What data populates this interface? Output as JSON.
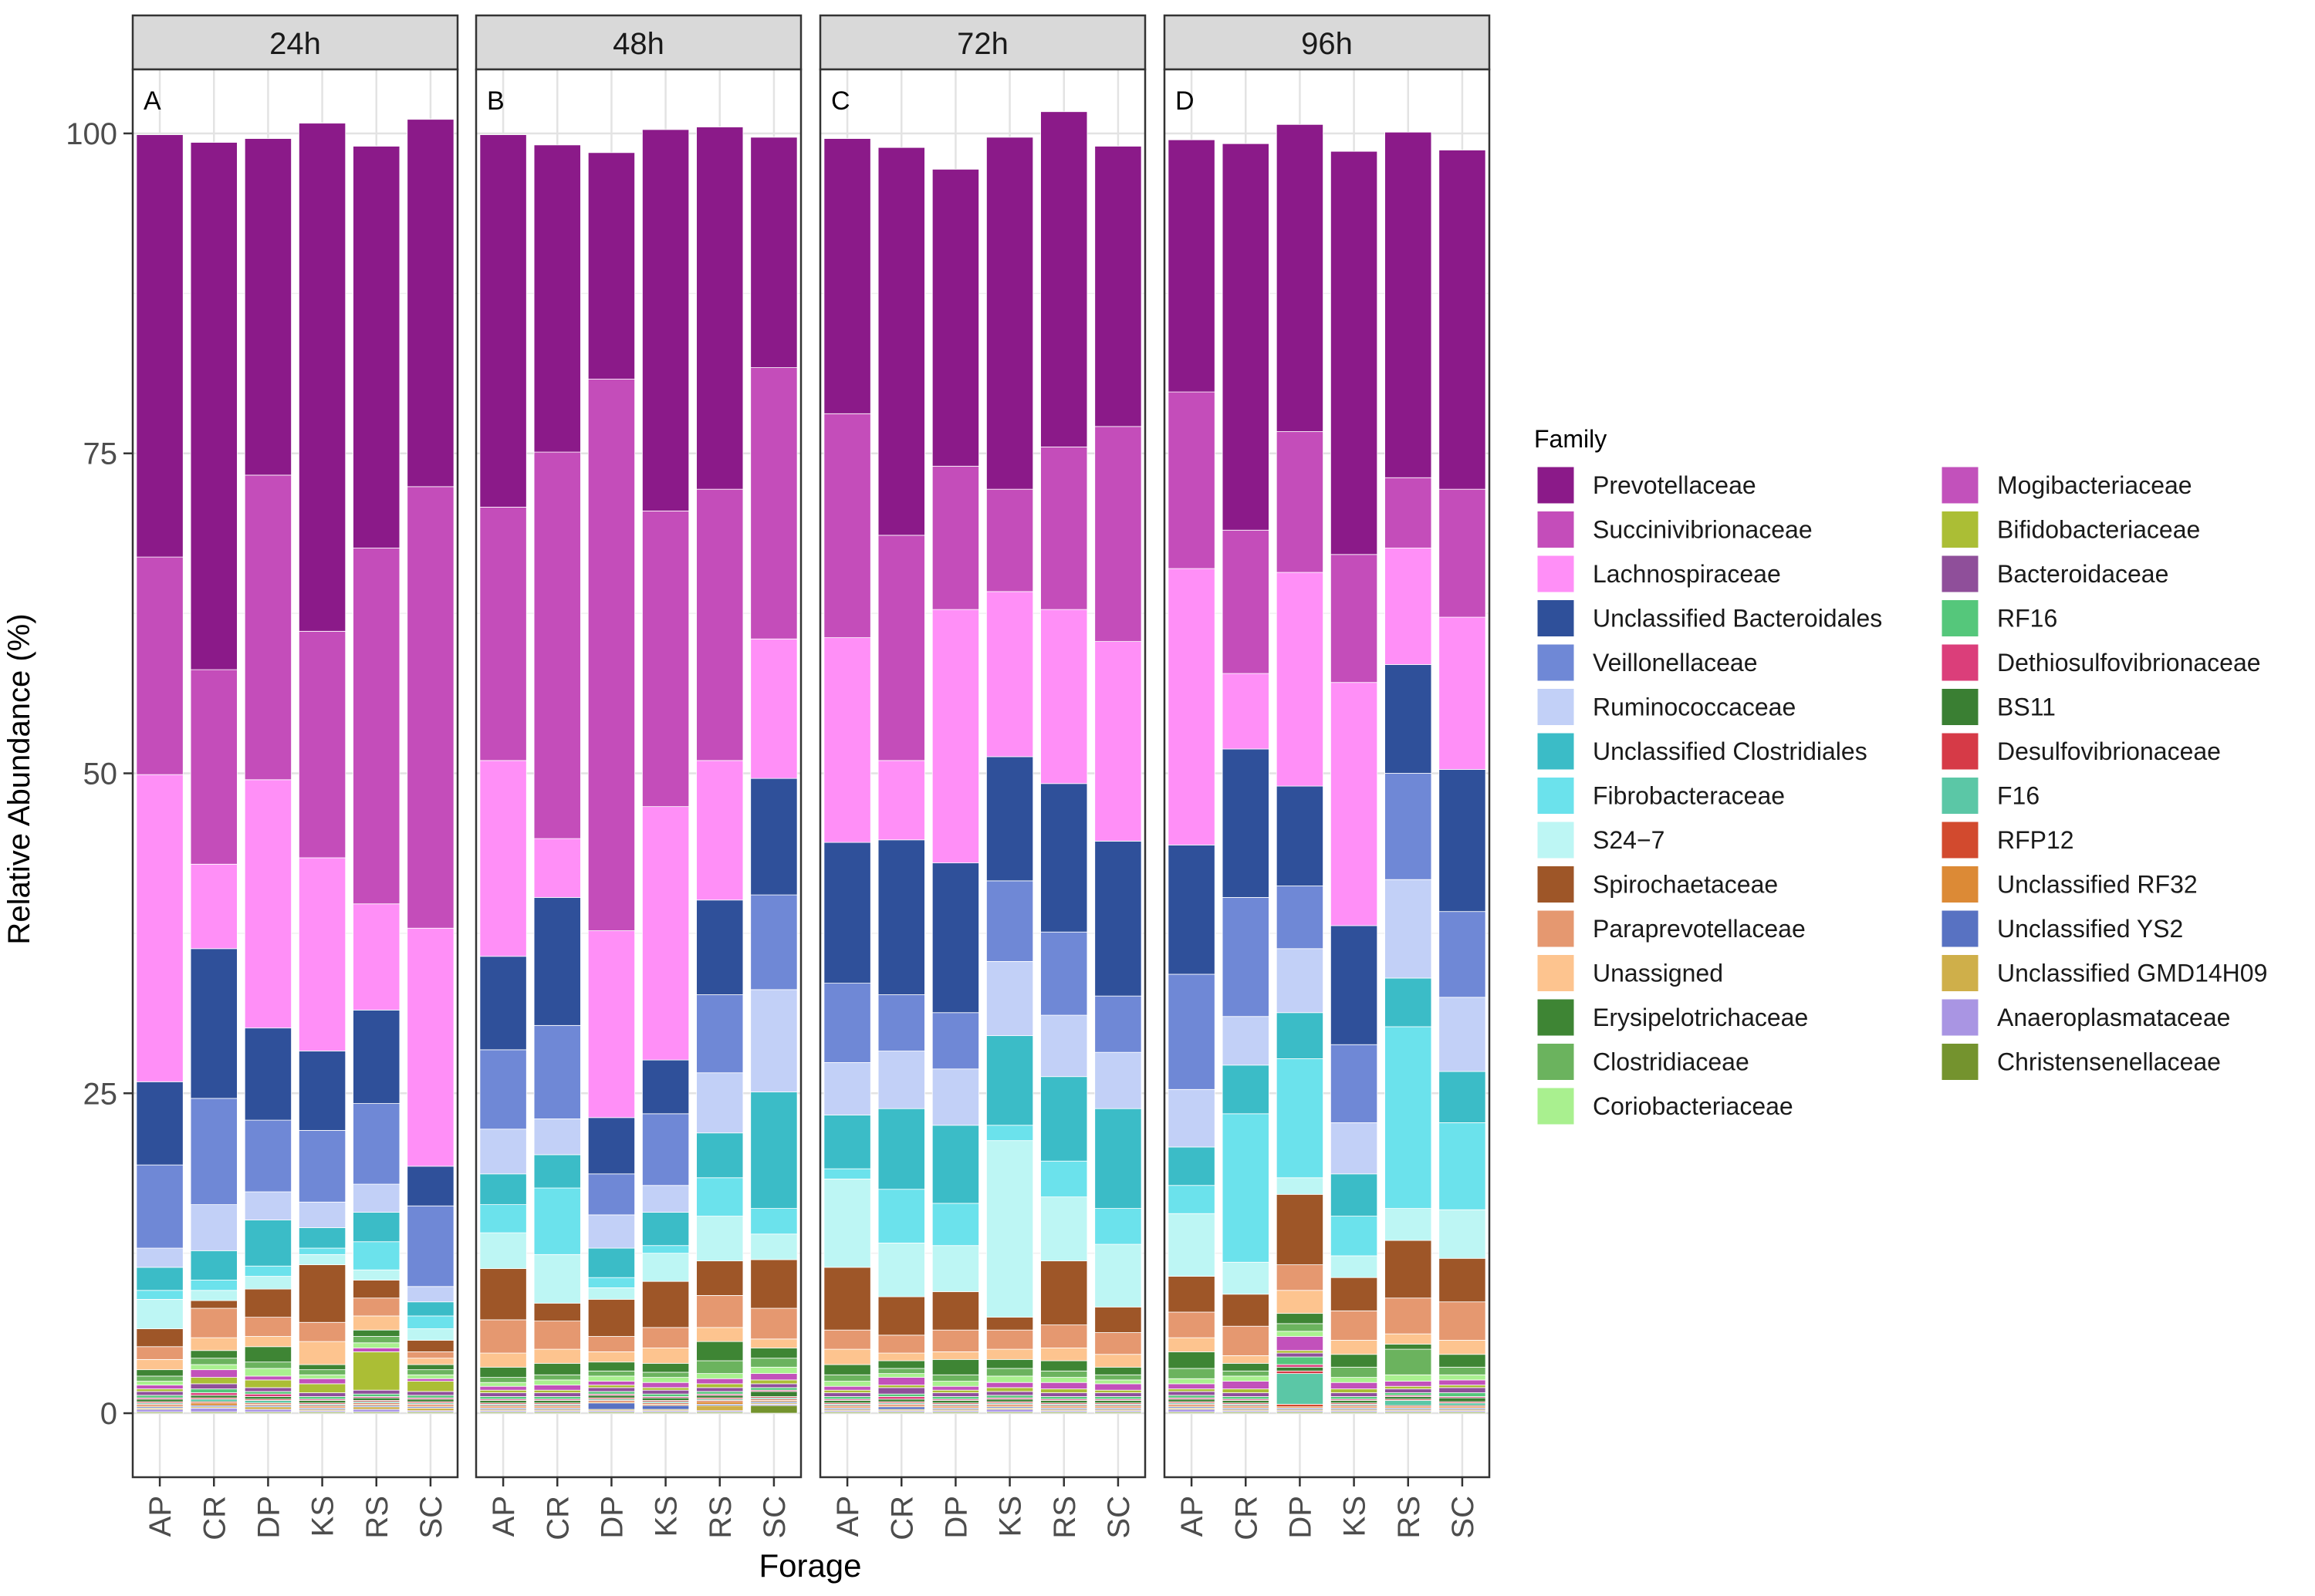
{
  "chart_data": {
    "type": "bar",
    "stacked": true,
    "facet_by": "time",
    "ylabel": "Relative Abundance (%)",
    "xlabel": "Forage",
    "ylim": [
      -5,
      105
    ],
    "yticks": [
      0,
      25,
      50,
      75,
      100
    ],
    "grid": true,
    "legend_position": "right",
    "legend_title": "Family",
    "categories": [
      "AP",
      "CR",
      "DP",
      "KS",
      "RS",
      "SC"
    ],
    "families": [
      {
        "name": "Prevotellaceae",
        "color": "#8B1A89"
      },
      {
        "name": "Succinivibrionaceae",
        "color": "#C44DBA"
      },
      {
        "name": "Lachnospiraceae",
        "color": "#FF8FF7"
      },
      {
        "name": "Unclassified Bacteroidales",
        "color": "#2F509A"
      },
      {
        "name": "Veillonellaceae",
        "color": "#6F88D6"
      },
      {
        "name": "Ruminococcaceae",
        "color": "#C2D0F7"
      },
      {
        "name": "Unclassified Clostridiales",
        "color": "#3BBCC7"
      },
      {
        "name": "Fibrobacteraceae",
        "color": "#6BE2EC"
      },
      {
        "name": "S24−7",
        "color": "#BDF6F4"
      },
      {
        "name": "Spirochaetaceae",
        "color": "#9E5628"
      },
      {
        "name": "Paraprevotellaceae",
        "color": "#E59870"
      },
      {
        "name": "Unassigned",
        "color": "#FDC48F"
      },
      {
        "name": "Erysipelotrichaceae",
        "color": "#3E8534"
      },
      {
        "name": "Clostridiaceae",
        "color": "#6BB35E"
      },
      {
        "name": "Coriobacteriaceae",
        "color": "#A9F08F"
      },
      {
        "name": "Mogibacteriaceae",
        "color": "#C251BB"
      },
      {
        "name": "Bifidobacteriaceae",
        "color": "#ABBE35"
      },
      {
        "name": "Bacteroidaceae",
        "color": "#8F4F9A"
      },
      {
        "name": "RF16",
        "color": "#55C77B"
      },
      {
        "name": "Dethiosulfovibrionaceae",
        "color": "#DB3E7A"
      },
      {
        "name": "BS11",
        "color": "#3A7F33"
      },
      {
        "name": "Desulfovibrionaceae",
        "color": "#D63A47"
      },
      {
        "name": "F16",
        "color": "#5BC7A6"
      },
      {
        "name": "RFP12",
        "color": "#D24A2E"
      },
      {
        "name": "Unclassified RF32",
        "color": "#DC8A36"
      },
      {
        "name": "Unclassified YS2",
        "color": "#5872C2"
      },
      {
        "name": "Unclassified GMD14H09",
        "color": "#CFAF4A"
      },
      {
        "name": "Anaeroplasmataceae",
        "color": "#A995E3"
      },
      {
        "name": "Christensenellaceae",
        "color": "#74932E"
      }
    ],
    "panels": [
      {
        "strip": "24h",
        "tag": "A",
        "bars": [
          {
            "category": "AP",
            "values": [
              33.0,
              17.0,
              24.0,
              6.5,
              6.5,
              1.5,
              1.8,
              0.7,
              2.3,
              1.4,
              1.0,
              0.8,
              0.5,
              0.4,
              0.3,
              0.3,
              0.2,
              0.3,
              0.2,
              0.1,
              0.2,
              0.1,
              0.1,
              0.1,
              0.1,
              0.1,
              0.1,
              0.2,
              0.1
            ]
          },
          {
            "category": "CR",
            "values": [
              41.2,
              15.2,
              6.6,
              11.7,
              8.3,
              3.6,
              2.3,
              0.8,
              0.8,
              0.6,
              2.3,
              1.0,
              0.6,
              0.5,
              0.4,
              0.6,
              0.5,
              0.4,
              0.3,
              0.2,
              0.2,
              0.1,
              0.2,
              0.1,
              0.2,
              0.1,
              0.1,
              0.3,
              0.1
            ]
          },
          {
            "category": "DP",
            "values": [
              26.3,
              23.8,
              19.4,
              7.2,
              5.6,
              2.2,
              3.6,
              0.8,
              1.0,
              2.2,
              1.5,
              0.8,
              1.2,
              0.5,
              0.6,
              0.3,
              0.6,
              0.3,
              0.2,
              0.2,
              0.2,
              0.1,
              0.2,
              0.1,
              0.1,
              0.1,
              0.2,
              0.2,
              0.1
            ]
          },
          {
            "category": "KS",
            "values": [
              39.7,
              17.7,
              15.1,
              6.2,
              5.6,
              2.0,
              1.6,
              0.5,
              0.8,
              4.5,
              1.5,
              1.8,
              0.4,
              0.4,
              0.3,
              0.4,
              0.7,
              0.3,
              0.2,
              0.1,
              0.2,
              0.1,
              0.1,
              0.1,
              0.1,
              0.1,
              0.1,
              0.1,
              0.1
            ]
          },
          {
            "category": "RS",
            "values": [
              31.4,
              27.8,
              8.3,
              7.3,
              6.3,
              2.2,
              2.3,
              2.2,
              0.8,
              1.4,
              1.4,
              1.1,
              0.5,
              0.5,
              0.4,
              0.3,
              3.0,
              0.3,
              0.2,
              0.1,
              0.2,
              0.1,
              0.1,
              0.1,
              0.1,
              0.1,
              0.2,
              0.2,
              0.1
            ]
          },
          {
            "category": "SC",
            "values": [
              28.7,
              34.5,
              18.6,
              3.1,
              6.3,
              1.2,
              1.1,
              1.0,
              0.9,
              0.9,
              0.5,
              0.5,
              0.4,
              0.4,
              0.3,
              0.2,
              0.8,
              0.3,
              0.2,
              0.1,
              0.2,
              0.1,
              0.1,
              0.1,
              0.1,
              0.1,
              0.2,
              0.1,
              0.1
            ]
          }
        ]
      },
      {
        "strip": "48h",
        "tag": "B",
        "bars": [
          {
            "category": "AP",
            "values": [
              29.1,
              19.8,
              15.3,
              7.3,
              6.2,
              3.5,
              2.4,
              2.2,
              2.8,
              4.0,
              2.6,
              1.1,
              0.8,
              0.4,
              0.3,
              0.3,
              0.2,
              0.3,
              0.2,
              0.1,
              0.2,
              0.1,
              0.1,
              0.1,
              0.1,
              0.1,
              0.1,
              0.1,
              0.1
            ]
          },
          {
            "category": "CR",
            "values": [
              24.0,
              30.2,
              4.6,
              10.0,
              7.3,
              2.8,
              2.6,
              5.2,
              3.8,
              1.4,
              2.2,
              1.1,
              0.9,
              0.4,
              0.4,
              0.4,
              0.2,
              0.3,
              0.2,
              0.1,
              0.2,
              0.1,
              0.1,
              0.1,
              0.1,
              0.1,
              0.1,
              0.1,
              0.1
            ]
          },
          {
            "category": "DP",
            "values": [
              17.7,
              43.1,
              14.6,
              4.4,
              3.2,
              2.6,
              2.3,
              0.8,
              0.9,
              2.9,
              1.2,
              0.8,
              0.7,
              0.4,
              0.4,
              0.3,
              0.2,
              0.3,
              0.2,
              0.1,
              0.2,
              0.1,
              0.1,
              0.1,
              0.1,
              0.5,
              0.1,
              0.1,
              0.1
            ]
          },
          {
            "category": "KS",
            "values": [
              29.8,
              23.1,
              19.8,
              4.2,
              5.6,
              2.1,
              2.6,
              0.6,
              2.2,
              3.6,
              1.6,
              1.2,
              0.7,
              0.4,
              0.4,
              0.4,
              0.2,
              0.3,
              0.2,
              0.1,
              0.2,
              0.1,
              0.1,
              0.1,
              0.1,
              0.3,
              0.1,
              0.1,
              0.1
            ]
          },
          {
            "category": "RS",
            "values": [
              28.3,
              21.2,
              10.9,
              7.4,
              6.1,
              4.7,
              3.5,
              3.0,
              3.5,
              2.7,
              2.5,
              1.1,
              1.5,
              1.0,
              0.4,
              0.4,
              0.3,
              0.3,
              0.2,
              0.1,
              0.2,
              0.1,
              0.1,
              0.1,
              0.2,
              0.1,
              0.4,
              0.1,
              0.1
            ]
          },
          {
            "category": "SC",
            "values": [
              18.0,
              21.2,
              10.9,
              9.1,
              7.4,
              8.0,
              9.1,
              2.0,
              2.0,
              3.8,
              2.4,
              0.7,
              0.8,
              0.7,
              0.5,
              0.5,
              0.3,
              0.3,
              0.2,
              0.1,
              0.4,
              0.1,
              0.1,
              0.1,
              0.1,
              0.1,
              0.1,
              0.1,
              0.6
            ]
          }
        ]
      },
      {
        "strip": "72h",
        "tag": "C",
        "bars": [
          {
            "category": "AP",
            "values": [
              21.5,
              17.5,
              16.0,
              11.0,
              6.2,
              4.1,
              4.2,
              0.8,
              6.9,
              4.9,
              1.5,
              1.2,
              0.8,
              0.5,
              0.4,
              0.3,
              0.2,
              0.3,
              0.2,
              0.1,
              0.2,
              0.1,
              0.1,
              0.1,
              0.1,
              0.1,
              0.1,
              0.1,
              0.1
            ]
          },
          {
            "category": "CR",
            "values": [
              30.3,
              17.6,
              6.2,
              12.1,
              4.4,
              4.5,
              6.3,
              4.2,
              4.2,
              3.0,
              1.4,
              0.6,
              0.6,
              0.4,
              0.3,
              0.6,
              0.2,
              0.5,
              0.2,
              0.2,
              0.2,
              0.1,
              0.1,
              0.1,
              0.1,
              0.2,
              0.1,
              0.1,
              0.1
            ]
          },
          {
            "category": "DP",
            "values": [
              23.2,
              11.2,
              19.8,
              11.7,
              4.4,
              4.4,
              6.1,
              3.3,
              3.6,
              3.0,
              1.7,
              0.6,
              1.2,
              0.5,
              0.4,
              0.3,
              0.2,
              0.3,
              0.2,
              0.1,
              0.2,
              0.1,
              0.1,
              0.1,
              0.1,
              0.1,
              0.1,
              0.1,
              0.1
            ]
          },
          {
            "category": "KS",
            "values": [
              27.5,
              8.0,
              12.9,
              9.7,
              6.3,
              5.8,
              7.0,
              1.2,
              13.8,
              1.0,
              1.5,
              0.8,
              0.7,
              0.6,
              0.5,
              0.4,
              0.3,
              0.3,
              0.2,
              0.1,
              0.2,
              0.1,
              0.1,
              0.1,
              0.1,
              0.1,
              0.1,
              0.2,
              0.1
            ]
          },
          {
            "category": "RS",
            "values": [
              26.2,
              12.7,
              13.6,
              11.6,
              6.5,
              4.8,
              6.6,
              2.8,
              5.0,
              5.0,
              1.8,
              1.0,
              0.8,
              0.5,
              0.4,
              0.5,
              0.3,
              0.3,
              0.2,
              0.1,
              0.2,
              0.1,
              0.1,
              0.1,
              0.1,
              0.1,
              0.1,
              0.1,
              0.1
            ]
          },
          {
            "category": "SC",
            "values": [
              21.9,
              16.8,
              15.6,
              12.1,
              4.4,
              4.4,
              7.8,
              2.8,
              4.9,
              2.0,
              1.7,
              1.0,
              0.6,
              0.4,
              0.3,
              0.5,
              0.2,
              0.3,
              0.2,
              0.1,
              0.2,
              0.1,
              0.1,
              0.1,
              0.1,
              0.1,
              0.1,
              0.1,
              0.1
            ]
          }
        ]
      },
      {
        "strip": "96h",
        "tag": "D",
        "bars": [
          {
            "category": "AP",
            "values": [
              19.7,
              13.8,
              21.6,
              10.1,
              9.0,
              4.5,
              3.0,
              2.2,
              4.9,
              2.8,
              2.0,
              1.1,
              1.3,
              0.8,
              0.4,
              0.4,
              0.2,
              0.3,
              0.2,
              0.1,
              0.2,
              0.1,
              0.1,
              0.1,
              0.1,
              0.1,
              0.1,
              0.2,
              0.1
            ]
          },
          {
            "category": "CR",
            "values": [
              30.2,
              11.2,
              5.9,
              11.6,
              9.3,
              3.8,
              3.8,
              11.6,
              2.5,
              2.5,
              2.3,
              0.6,
              0.6,
              0.4,
              0.4,
              0.6,
              0.3,
              0.3,
              0.2,
              0.1,
              0.2,
              0.1,
              0.1,
              0.1,
              0.1,
              0.1,
              0.1,
              0.1,
              0.1
            ]
          },
          {
            "category": "DP",
            "values": [
              24.0,
              11.0,
              16.7,
              7.8,
              4.9,
              5.0,
              3.6,
              9.3,
              1.3,
              5.5,
              2.0,
              1.8,
              0.8,
              0.6,
              0.4,
              1.1,
              0.2,
              0.3,
              0.6,
              0.2,
              0.3,
              0.2,
              2.4,
              0.2,
              0.1,
              0.1,
              0.1,
              0.1,
              0.1
            ]
          },
          {
            "category": "KS",
            "values": [
              31.5,
              10.0,
              19.0,
              9.3,
              6.1,
              4.0,
              3.3,
              3.1,
              1.7,
              2.6,
              2.3,
              1.1,
              1.0,
              0.8,
              0.4,
              0.5,
              0.3,
              0.3,
              0.2,
              0.1,
              0.2,
              0.1,
              0.1,
              0.1,
              0.1,
              0.1,
              0.1,
              0.1,
              0.1
            ]
          },
          {
            "category": "RS",
            "values": [
              27.0,
              5.5,
              9.1,
              8.5,
              8.3,
              7.7,
              3.8,
              14.2,
              2.5,
              4.5,
              2.8,
              0.8,
              0.4,
              2.0,
              0.5,
              0.4,
              0.2,
              0.3,
              0.2,
              0.1,
              0.2,
              0.1,
              0.4,
              0.1,
              0.1,
              0.1,
              0.1,
              0.1,
              0.1
            ]
          },
          {
            "category": "SC",
            "values": [
              26.5,
              10.0,
              11.9,
              11.1,
              6.7,
              5.8,
              4.0,
              6.8,
              3.8,
              3.4,
              3.0,
              1.1,
              1.0,
              0.6,
              0.4,
              0.4,
              0.2,
              0.4,
              0.3,
              0.1,
              0.3,
              0.1,
              0.2,
              0.1,
              0.1,
              0.1,
              0.1,
              0.1,
              0.1
            ]
          }
        ]
      }
    ]
  }
}
